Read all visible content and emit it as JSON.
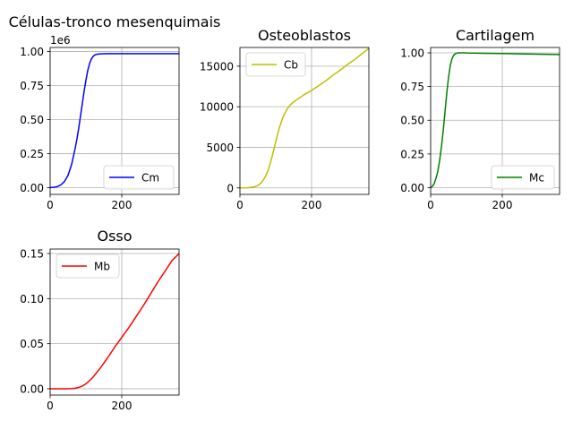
{
  "chart_data": [
    {
      "type": "line",
      "title": "Células-tronco mesenquimais",
      "xlabel": "",
      "ylabel": "",
      "xlim": [
        0,
        360
      ],
      "ylim": [
        -0.05,
        1.03
      ],
      "xticks": [
        0,
        200
      ],
      "yticks": [
        0.0,
        0.25,
        0.5,
        0.75,
        1.0
      ],
      "ytick_labels": [
        "0.00",
        "0.25",
        "0.50",
        "0.75",
        "1.00"
      ],
      "offset_text": "1e6",
      "grid": true,
      "legend_position": "lower right",
      "series": [
        {
          "name": "Cm",
          "color": "#0000ff",
          "x": [
            0,
            10,
            20,
            30,
            40,
            50,
            60,
            70,
            75,
            80,
            85,
            90,
            95,
            100,
            105,
            110,
            115,
            120,
            125,
            130,
            140,
            150,
            160,
            180,
            200,
            250,
            300,
            360
          ],
          "y": [
            0.0,
            0.002,
            0.007,
            0.02,
            0.045,
            0.09,
            0.17,
            0.29,
            0.36,
            0.44,
            0.53,
            0.62,
            0.71,
            0.79,
            0.86,
            0.91,
            0.945,
            0.965,
            0.975,
            0.98,
            0.983,
            0.984,
            0.985,
            0.985,
            0.985,
            0.985,
            0.985,
            0.985
          ]
        }
      ]
    },
    {
      "type": "line",
      "title": "Osteoblastos",
      "xlabel": "",
      "ylabel": "",
      "xlim": [
        0,
        360
      ],
      "ylim": [
        -800,
        17300
      ],
      "xticks": [
        0,
        200
      ],
      "yticks": [
        0,
        5000,
        10000,
        15000
      ],
      "ytick_labels": [
        "0",
        "5000",
        "10000",
        "15000"
      ],
      "grid": true,
      "legend_position": "upper left",
      "series": [
        {
          "name": "Cb",
          "color": "#bfbf00",
          "x": [
            0,
            20,
            40,
            50,
            60,
            70,
            80,
            90,
            100,
            110,
            120,
            130,
            140,
            150,
            160,
            180,
            200,
            220,
            240,
            260,
            280,
            300,
            320,
            340,
            360
          ],
          "y": [
            0,
            20,
            120,
            300,
            650,
            1300,
            2300,
            3900,
            5700,
            7400,
            8700,
            9600,
            10200,
            10600,
            10900,
            11500,
            12000,
            12600,
            13200,
            13900,
            14500,
            15200,
            15800,
            16500,
            17200
          ]
        }
      ]
    },
    {
      "type": "line",
      "title": "Cartilagem",
      "xlabel": "",
      "ylabel": "",
      "xlim": [
        0,
        360
      ],
      "ylim": [
        -0.05,
        1.04
      ],
      "xticks": [
        0,
        200
      ],
      "yticks": [
        0.0,
        0.25,
        0.5,
        0.75,
        1.0
      ],
      "ytick_labels": [
        "0.00",
        "0.25",
        "0.50",
        "0.75",
        "1.00"
      ],
      "grid": true,
      "legend_position": "lower right",
      "series": [
        {
          "name": "Mc",
          "color": "#008000",
          "x": [
            0,
            5,
            10,
            15,
            20,
            25,
            30,
            35,
            40,
            45,
            50,
            55,
            60,
            65,
            70,
            75,
            80,
            90,
            100,
            150,
            200,
            250,
            300,
            360
          ],
          "y": [
            0.0,
            0.01,
            0.03,
            0.07,
            0.12,
            0.2,
            0.3,
            0.42,
            0.56,
            0.7,
            0.82,
            0.91,
            0.96,
            0.985,
            0.995,
            1.0,
            1.0,
            1.0,
            0.999,
            0.997,
            0.995,
            0.993,
            0.99,
            0.988
          ]
        }
      ]
    },
    {
      "type": "line",
      "title": "Osso",
      "xlabel": "",
      "ylabel": "",
      "xlim": [
        0,
        360
      ],
      "ylim": [
        -0.007,
        0.155
      ],
      "xticks": [
        0,
        200
      ],
      "yticks": [
        0.0,
        0.05,
        0.1,
        0.15
      ],
      "ytick_labels": [
        "0.00",
        "0.05",
        "0.10",
        "0.15"
      ],
      "grid": true,
      "legend_position": "upper left",
      "series": [
        {
          "name": "Mb",
          "color": "#ff0000",
          "x": [
            0,
            20,
            40,
            60,
            70,
            80,
            90,
            100,
            110,
            120,
            130,
            140,
            160,
            180,
            200,
            220,
            240,
            260,
            280,
            300,
            320,
            340,
            360
          ],
          "y": [
            0.0,
            0.0,
            0.0,
            0.0002,
            0.0006,
            0.0015,
            0.003,
            0.0055,
            0.009,
            0.013,
            0.018,
            0.023,
            0.034,
            0.046,
            0.057,
            0.068,
            0.08,
            0.092,
            0.105,
            0.118,
            0.13,
            0.142,
            0.15
          ]
        }
      ]
    }
  ]
}
